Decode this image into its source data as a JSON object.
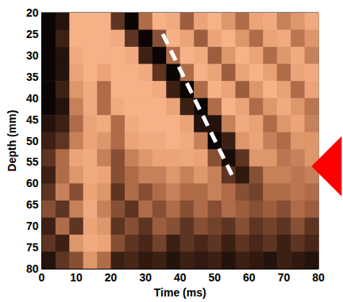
{
  "chart_data": {
    "type": "heatmap",
    "xlabel": "Time (ms)",
    "ylabel": "Depth (mm)",
    "xlim": [
      0,
      80
    ],
    "xticks": [
      0,
      10,
      20,
      30,
      40,
      50,
      60,
      70,
      80
    ],
    "ylim": [
      80,
      20
    ],
    "yticks": [
      20,
      25,
      30,
      35,
      40,
      45,
      50,
      55,
      60,
      65,
      70,
      75,
      80
    ],
    "grid": false,
    "cells": {
      "x": [
        2,
        6,
        10,
        14,
        18,
        22,
        26,
        30,
        34,
        38,
        42,
        46,
        50,
        54,
        58,
        62,
        66,
        70,
        74,
        78
      ],
      "y": [
        22,
        26,
        30,
        34,
        38,
        42,
        46,
        50,
        54,
        58,
        62,
        66,
        70,
        74,
        78
      ],
      "values": [
        [
          0,
          0.1,
          1,
          1,
          1,
          0.3,
          0,
          0.5,
          1,
          0.9,
          0.45,
          0.8,
          1,
          0.7,
          0.5,
          0.8,
          0.9,
          0.6,
          0.7,
          0.9
        ],
        [
          0,
          0.2,
          1,
          1,
          1,
          0.9,
          0.3,
          0,
          0.4,
          1,
          0.8,
          0.45,
          0.8,
          1,
          0.7,
          0.5,
          0.8,
          0.9,
          0.55,
          0.7
        ],
        [
          0,
          0.1,
          0.9,
          1,
          1,
          1,
          0.9,
          0.2,
          0,
          0.5,
          1,
          0.9,
          0.45,
          0.7,
          1,
          0.8,
          0.5,
          0.7,
          0.9,
          0.6
        ],
        [
          0,
          0.1,
          0.8,
          1,
          0.8,
          1,
          1,
          0.9,
          0.3,
          0,
          0.5,
          1,
          0.8,
          0.45,
          0.8,
          1,
          0.75,
          0.5,
          0.8,
          0.9
        ],
        [
          0,
          0.2,
          0.7,
          0.9,
          0.5,
          1,
          1,
          1,
          0.9,
          0.2,
          0,
          0.5,
          1,
          0.8,
          0.45,
          0.7,
          1,
          0.75,
          0.5,
          0.8
        ],
        [
          0,
          0.1,
          0.6,
          0.9,
          0.5,
          0.9,
          1,
          1,
          1,
          0.8,
          0.2,
          0,
          0.5,
          1,
          0.8,
          0.5,
          0.7,
          0.9,
          0.7,
          0.55
        ],
        [
          0.1,
          0.2,
          0.5,
          0.8,
          0.9,
          0.5,
          0.9,
          1,
          1,
          1,
          0.8,
          0.1,
          0.1,
          0.6,
          0.9,
          0.75,
          0.5,
          0.7,
          0.8,
          0.6
        ],
        [
          0.2,
          0.3,
          0.6,
          0.8,
          0.7,
          0.5,
          0.8,
          0.9,
          0.9,
          1,
          0.9,
          0.6,
          0,
          0.2,
          0.7,
          0.8,
          0.6,
          0.5,
          0.7,
          0.7
        ],
        [
          0.3,
          0.5,
          0.8,
          0.9,
          0.6,
          0.4,
          0.6,
          0.7,
          0.8,
          0.8,
          0.85,
          0.8,
          0.4,
          0.05,
          0.3,
          0.7,
          0.7,
          0.55,
          0.6,
          0.7
        ],
        [
          0.2,
          0.5,
          0.7,
          0.9,
          0.8,
          0.4,
          0.5,
          0.6,
          0.6,
          0.7,
          0.6,
          0.7,
          0.6,
          0.3,
          0.15,
          0.4,
          0.6,
          0.6,
          0.55,
          0.6
        ],
        [
          0.3,
          0.6,
          0.4,
          0.8,
          0.7,
          0.3,
          0.5,
          0.4,
          0.5,
          0.6,
          0.5,
          0.5,
          0.6,
          0.5,
          0.4,
          0.35,
          0.5,
          0.5,
          0.55,
          0.5
        ],
        [
          0.4,
          0.3,
          0.6,
          0.9,
          0.6,
          0.4,
          0.3,
          0.5,
          0.4,
          0.5,
          0.4,
          0.5,
          0.4,
          0.5,
          0.45,
          0.4,
          0.45,
          0.4,
          0.5,
          0.45
        ],
        [
          0.2,
          0.5,
          0.3,
          0.8,
          0.7,
          0.3,
          0.4,
          0.3,
          0.45,
          0.4,
          0.3,
          0.4,
          0.35,
          0.3,
          0.4,
          0.3,
          0.35,
          0.3,
          0.4,
          0.3
        ],
        [
          0.3,
          0.2,
          0.7,
          0.9,
          0.8,
          0.4,
          0.3,
          0.25,
          0.35,
          0.2,
          0.3,
          0.25,
          0.3,
          0.2,
          0.3,
          0.25,
          0.3,
          0.2,
          0.3,
          0.25
        ],
        [
          0.1,
          0.3,
          0.4,
          0.7,
          0.5,
          0.2,
          0.25,
          0.15,
          0.2,
          0.1,
          0.2,
          0.15,
          0.2,
          0.1,
          0.2,
          0.15,
          0.1,
          0.2,
          0.15,
          0.1
        ]
      ],
      "zlim": [
        0,
        1
      ]
    },
    "annotations": [
      {
        "type": "line",
        "x": [
          35,
          55
        ],
        "y": [
          25,
          58
        ],
        "line_style": "dashed",
        "color": "#ffffff"
      },
      {
        "type": "marker",
        "marker": "triangle",
        "x": 78,
        "y": 56,
        "color": "#ff0000"
      }
    ]
  }
}
